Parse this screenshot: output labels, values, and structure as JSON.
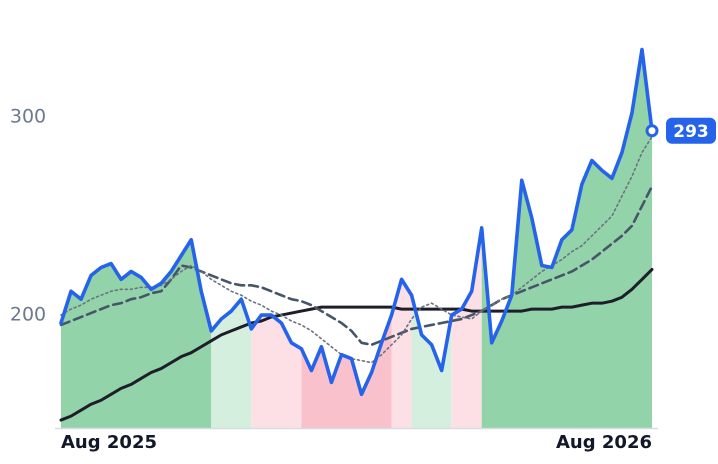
{
  "chart_data": {
    "type": "line",
    "categories": [
      "Aug 2025",
      null,
      null,
      null,
      null,
      null,
      null,
      null,
      null,
      null,
      null,
      null,
      null,
      null,
      null,
      null,
      null,
      null,
      null,
      null,
      null,
      null,
      null,
      null,
      null,
      null,
      null,
      null,
      null,
      null,
      null,
      null,
      null,
      null,
      null,
      null,
      null,
      null,
      null,
      null,
      null,
      null,
      null,
      null,
      null,
      null,
      null,
      null,
      null,
      null,
      null,
      null,
      null,
      null,
      null,
      null,
      null,
      null,
      null,
      "Aug 2026"
    ],
    "series": [
      {
        "color": "#2563eb",
        "style": "solid",
        "values": [
          196,
          212,
          208,
          220,
          224,
          226,
          218,
          222,
          219,
          213,
          216,
          222,
          230,
          238,
          212,
          192,
          198,
          202,
          208,
          193,
          200,
          200,
          196,
          186,
          183,
          172,
          184,
          166,
          180,
          178,
          160,
          171,
          186,
          200,
          218,
          210,
          190,
          185,
          172,
          200,
          203,
          212,
          244,
          186,
          197,
          210,
          268,
          249,
          225,
          224,
          238,
          243,
          266,
          278,
          273,
          269,
          282,
          302,
          334,
          293
        ]
      },
      {
        "color": "#6b7280",
        "style": "dotted",
        "values": [
          200,
          203,
          205,
          208,
          210,
          212,
          213,
          213,
          214,
          214,
          215,
          218,
          222,
          225,
          222,
          218,
          215,
          212,
          210,
          207,
          205,
          202,
          200,
          197,
          195,
          192,
          188,
          184,
          180,
          178,
          177,
          176,
          180,
          185,
          190,
          198,
          204,
          206,
          203,
          200,
          199,
          198,
          202,
          205,
          208,
          210,
          214,
          218,
          222,
          225,
          228,
          232,
          235,
          240,
          245,
          250,
          260,
          270,
          282,
          290
        ]
      },
      {
        "color": "#475569",
        "style": "dashed",
        "values": [
          195,
          197,
          199,
          201,
          203,
          205,
          206,
          208,
          209,
          211,
          212,
          218,
          225,
          224,
          222,
          220,
          218,
          216,
          215,
          215,
          214,
          212,
          210,
          208,
          207,
          205,
          202,
          199,
          196,
          192,
          186,
          185,
          187,
          189,
          191,
          193,
          194,
          195,
          196,
          197,
          198,
          200,
          202,
          205,
          208,
          210,
          212,
          214,
          216,
          218,
          220,
          222,
          225,
          228,
          232,
          236,
          240,
          245,
          255,
          265
        ]
      },
      {
        "color": "#1e1e2a",
        "style": "solid",
        "values": [
          147,
          149,
          152,
          155,
          157,
          160,
          163,
          165,
          168,
          171,
          173,
          176,
          179,
          181,
          184,
          187,
          190,
          192,
          194,
          196,
          197,
          199,
          200,
          201,
          202,
          203,
          204,
          204,
          204,
          204,
          204,
          204,
          204,
          204,
          203,
          203,
          203,
          203,
          203,
          203,
          203,
          202,
          202,
          202,
          202,
          202,
          202,
          203,
          203,
          203,
          204,
          204,
          205,
          206,
          206,
          207,
          209,
          213,
          218,
          223
        ]
      }
    ],
    "shading": [
      {
        "start": 0,
        "end": 15,
        "color": "#93d3aa"
      },
      {
        "start": 15,
        "end": 19,
        "color": "#d5efde"
      },
      {
        "start": 19,
        "end": 24,
        "color": "#fde0e5"
      },
      {
        "start": 24,
        "end": 33,
        "color": "#f9c1cb"
      },
      {
        "start": 33,
        "end": 35,
        "color": "#fde0e5"
      },
      {
        "start": 35,
        "end": 39,
        "color": "#d5efde"
      },
      {
        "start": 39,
        "end": 42,
        "color": "#fde0e5"
      },
      {
        "start": 42,
        "end": 59,
        "color": "#93d3aa"
      }
    ],
    "ylim": [
      143,
      360
    ],
    "yticks": [
      200,
      300
    ],
    "grid": false
  }
}
